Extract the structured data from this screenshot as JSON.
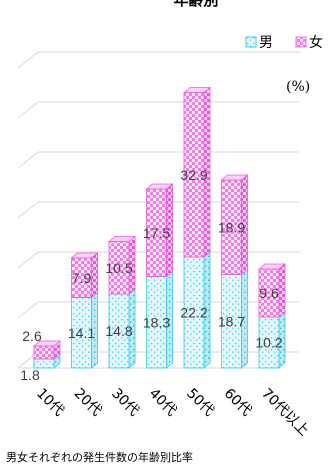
{
  "chart_data": {
    "type": "bar",
    "stacked": true,
    "three_d": true,
    "title": "年齢別",
    "unit_label": "(%)",
    "caption": "男女それぞれの発生件数の年齢別比率",
    "categories": [
      "10代",
      "20代",
      "30代",
      "40代",
      "50代",
      "60代",
      "70代以上"
    ],
    "series": [
      {
        "name": "男",
        "values": [
          1.8,
          14.1,
          14.8,
          18.3,
          22.2,
          18.7,
          10.2
        ],
        "color": "#33ccee",
        "pattern": "dots"
      },
      {
        "name": "女",
        "values": [
          2.6,
          7.9,
          10.5,
          17.5,
          32.9,
          18.9,
          9.6
        ],
        "color": "#ff66ee",
        "pattern": "checker"
      }
    ],
    "ylim": [
      0,
      60
    ],
    "grid": true,
    "legend_position": "top-right"
  },
  "colors": {
    "male": "#33ccee",
    "female": "#ff66ee",
    "grid": "#d9d9d9"
  }
}
